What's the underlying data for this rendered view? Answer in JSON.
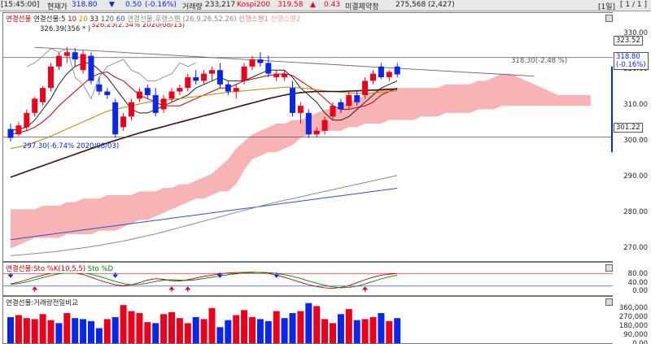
{
  "header": {
    "time": "[15:45:00]",
    "price_label": "현재가",
    "price": "318.80",
    "change_arrow": "▼",
    "change": "0.50",
    "change_pct": "(-0.16%)",
    "volume_label": "거래량",
    "volume": "233,217",
    "kospi_label": "Kospi200",
    "kospi_value": "319.58",
    "kospi_arrow": "▲",
    "kospi_change": "0.43",
    "oi_label": "미결제약정",
    "oi_value": "275,568",
    "oi_change": "(2,427)",
    "period": "[1일]",
    "page": "[ 1 / 1 ]",
    "colors": {
      "up": "#e8001c",
      "down": "#0a26e6"
    }
  },
  "main_legend": [
    {
      "text": "연결선물",
      "color": "#c00000"
    },
    {
      "text": "연결선물:5",
      "color": "#222222"
    },
    {
      "text": "10",
      "color": "#c00000"
    },
    {
      "text": "20",
      "color": "#b8860b"
    },
    {
      "text": "33",
      "color": "#3a1010"
    },
    {
      "text": "120",
      "color": "#555555"
    },
    {
      "text": "60",
      "color": "#3050d0"
    },
    {
      "text": "연결선물:후행스팬",
      "color": "#888888"
    },
    {
      "text": "(26,9,26,52,26)",
      "color": "#888888"
    },
    {
      "text": "선행스팬1",
      "color": "#e88080"
    },
    {
      "text": "선행스팬2",
      "color": "#e8a0a0"
    }
  ],
  "stoch_legend": [
    {
      "text": "연결선물:Sto %K(10,5,5)",
      "color": "#c00000"
    },
    {
      "text": "Sto %D",
      "color": "#008000"
    }
  ],
  "vol_legend": [
    {
      "text": "연결선물:거래량전일비교",
      "color": "#222222"
    }
  ],
  "annotations": {
    "peak_main": "326.39(356 * )",
    "peak_high": "326.25(2.34% 2020/08/13)",
    "low_mark": "297.30(-6.74% 2020/08/03)",
    "trend_end": "318.30(-2.48 %)"
  },
  "price_boxes": {
    "resistance": "323.52",
    "current_price": "318.80",
    "current_pct": "(-0.16%)",
    "support": "301.22"
  },
  "chart_data": [
    {
      "type": "candlestick",
      "name": "연결선물",
      "y_ticks": [
        "330.00",
        "320.00",
        "310.00",
        "300.00",
        "290.00",
        "280.00",
        "270.00"
      ],
      "ylim": [
        266.5,
        336
      ],
      "candles": [
        {
          "o": 303.5,
          "h": 305,
          "c": 301,
          "l": 300
        },
        {
          "o": 302,
          "h": 305.5,
          "c": 304.5,
          "l": 301.5
        },
        {
          "o": 304,
          "h": 309,
          "c": 308,
          "l": 303
        },
        {
          "o": 308,
          "h": 312.5,
          "c": 312,
          "l": 307
        },
        {
          "o": 311,
          "h": 315.5,
          "c": 315,
          "l": 310
        },
        {
          "o": 315,
          "h": 322,
          "c": 321,
          "l": 314
        },
        {
          "o": 321,
          "h": 325,
          "c": 324,
          "l": 320
        },
        {
          "o": 324,
          "h": 326.4,
          "c": 325,
          "l": 322
        },
        {
          "o": 325,
          "h": 326.2,
          "c": 323,
          "l": 321
        },
        {
          "o": 320,
          "h": 325.5,
          "c": 324.5,
          "l": 319
        },
        {
          "o": 324,
          "h": 325,
          "c": 317,
          "l": 316
        },
        {
          "o": 316,
          "h": 318,
          "c": 314,
          "l": 313
        },
        {
          "o": 314,
          "h": 315,
          "c": 313,
          "l": 312
        },
        {
          "o": 311,
          "h": 312,
          "c": 302,
          "l": 301
        },
        {
          "o": 304,
          "h": 308,
          "c": 307,
          "l": 303
        },
        {
          "o": 307,
          "h": 312,
          "c": 311,
          "l": 306
        },
        {
          "o": 312,
          "h": 315,
          "c": 314,
          "l": 311
        },
        {
          "o": 315,
          "h": 316,
          "c": 313,
          "l": 312
        },
        {
          "o": 313,
          "h": 315,
          "c": 308,
          "l": 307
        },
        {
          "o": 309,
          "h": 313,
          "c": 312,
          "l": 308
        },
        {
          "o": 312,
          "h": 315,
          "c": 314,
          "l": 311
        },
        {
          "o": 314,
          "h": 316,
          "c": 315,
          "l": 313
        },
        {
          "o": 315,
          "h": 319,
          "c": 318,
          "l": 314
        },
        {
          "o": 318,
          "h": 320,
          "c": 317,
          "l": 316
        },
        {
          "o": 317,
          "h": 320,
          "c": 319,
          "l": 316
        },
        {
          "o": 319,
          "h": 321,
          "c": 320,
          "l": 317
        },
        {
          "o": 320,
          "h": 322,
          "c": 316,
          "l": 315
        },
        {
          "o": 316,
          "h": 317,
          "c": 314,
          "l": 313
        },
        {
          "o": 314,
          "h": 316,
          "c": 315,
          "l": 312
        },
        {
          "o": 317,
          "h": 322,
          "c": 321,
          "l": 316
        },
        {
          "o": 321,
          "h": 324,
          "c": 323,
          "l": 320
        },
        {
          "o": 323,
          "h": 325,
          "c": 322,
          "l": 321
        },
        {
          "o": 322,
          "h": 324,
          "c": 319,
          "l": 318
        },
        {
          "o": 318,
          "h": 320,
          "c": 319,
          "l": 317
        },
        {
          "o": 318,
          "h": 320,
          "c": 319,
          "l": 317
        },
        {
          "o": 315,
          "h": 317,
          "c": 308,
          "l": 307
        },
        {
          "o": 308,
          "h": 311,
          "c": 310,
          "l": 305
        },
        {
          "o": 308,
          "h": 309,
          "c": 302,
          "l": 301
        },
        {
          "o": 302,
          "h": 304,
          "c": 303,
          "l": 301.2
        },
        {
          "o": 303,
          "h": 307,
          "c": 306,
          "l": 302
        },
        {
          "o": 307,
          "h": 311,
          "c": 310,
          "l": 306
        },
        {
          "o": 311,
          "h": 312,
          "c": 309,
          "l": 308
        },
        {
          "o": 310,
          "h": 314,
          "c": 313,
          "l": 309
        },
        {
          "o": 313,
          "h": 314,
          "c": 311,
          "l": 310
        },
        {
          "o": 313,
          "h": 318,
          "c": 317,
          "l": 312
        },
        {
          "o": 317,
          "h": 320,
          "c": 319,
          "l": 316
        },
        {
          "o": 321,
          "h": 322,
          "c": 318,
          "l": 317.5
        },
        {
          "o": 318,
          "h": 320,
          "c": 319.5,
          "l": 317
        },
        {
          "o": 321,
          "h": 322,
          "c": 318.8,
          "l": 318
        }
      ],
      "ma": [
        {
          "name": "5",
          "color": "#222222",
          "values": [
            303,
            303.5,
            304,
            306,
            309,
            312,
            316,
            319,
            321,
            322,
            322,
            320,
            318,
            315,
            312,
            309,
            308,
            308,
            309,
            310,
            311,
            312,
            313,
            315,
            316,
            317,
            318,
            317,
            317,
            317,
            318,
            319,
            320,
            320,
            320,
            318,
            315,
            313,
            311,
            308,
            306,
            306,
            307,
            309,
            311,
            313,
            315,
            316,
            317
          ]
        },
        {
          "name": "10",
          "color": "#c00000",
          "values": [
            302,
            302.5,
            303,
            304,
            305.5,
            307.5,
            310,
            312,
            314,
            316,
            318,
            319,
            319.5,
            318,
            317,
            315,
            313,
            312,
            311,
            310,
            310,
            310,
            311,
            312,
            313,
            314,
            315,
            315,
            316,
            317,
            317.5,
            318,
            318.5,
            318.8,
            319,
            318.5,
            317,
            315.5,
            314,
            312,
            310,
            309,
            309,
            309.5,
            310,
            311,
            313,
            314,
            315
          ]
        },
        {
          "name": "20",
          "color": "#b8860b",
          "values": [
            298,
            298.5,
            299,
            299.8,
            300.6,
            301.5,
            302.5,
            303.5,
            304.5,
            305.5,
            306.5,
            307.5,
            308.5,
            309,
            309.5,
            310,
            310.5,
            311,
            311.3,
            311.5,
            311.8,
            312,
            312.3,
            312.6,
            312.9,
            313.2,
            313.5,
            313.8,
            314,
            314.2,
            314.4,
            314.6,
            314.8,
            315,
            315.2,
            315.2,
            315,
            314.8,
            314.5,
            314.2,
            314,
            313.8,
            313.6,
            313.5,
            313.5,
            313.6,
            313.8,
            314,
            314.2
          ]
        },
        {
          "name": "33",
          "color": "#3a1010",
          "values": [
            290,
            290.8,
            291.6,
            292.4,
            293.2,
            294,
            294.8,
            295.6,
            296.4,
            297.2,
            298,
            298.8,
            299.6,
            300.3,
            301,
            301.7,
            302.4,
            303,
            303.6,
            304.2,
            304.8,
            305.4,
            306,
            306.6,
            307.2,
            307.8,
            308.4,
            309,
            309.6,
            310.2,
            310.8,
            311.4,
            312,
            312.5,
            313,
            313.4,
            313.7,
            313.9,
            314,
            314,
            314,
            314,
            314.1,
            314.2,
            314.3,
            314.4,
            314.5,
            314.6,
            314.7
          ]
        },
        {
          "name": "60",
          "color": "#3050d0",
          "values": [
            272.5,
            272.8,
            273.1,
            273.4,
            273.7,
            274,
            274.3,
            274.6,
            274.9,
            275.2,
            275.5,
            275.8,
            276.1,
            276.4,
            276.7,
            277,
            277.3,
            277.6,
            277.9,
            278.2,
            278.5,
            278.8,
            279.1,
            279.4,
            279.7,
            280,
            280.3,
            280.6,
            280.9,
            281.2,
            281.5,
            281.8,
            282.1,
            282.4,
            282.7,
            283,
            283.3,
            283.6,
            283.9,
            284.2,
            284.5,
            284.8,
            285.1,
            285.4,
            285.7,
            286,
            286.3,
            286.6,
            286.9
          ]
        },
        {
          "name": "120",
          "color": "#8a8a8a",
          "values": [
            268,
            268.2,
            268.4,
            268.6,
            268.8,
            269,
            269.3,
            269.6,
            269.9,
            270.2,
            270.5,
            270.9,
            271.3,
            271.7,
            272.1,
            272.6,
            273.1,
            273.6,
            274.1,
            274.7,
            275.3,
            275.9,
            276.5,
            277.1,
            277.7,
            278.3,
            278.9,
            279.5,
            280.1,
            280.7,
            281.3,
            281.9,
            282.5,
            283,
            283.5,
            284,
            284.5,
            285,
            285.5,
            286,
            286.5,
            287,
            287.5,
            288,
            288.5,
            289,
            289.5,
            290,
            290.5
          ]
        }
      ],
      "lagging_span": [
        321,
        322,
        324,
        326,
        325,
        326,
        318,
        316,
        312,
        318,
        321,
        322,
        323,
        320,
        319,
        317,
        317,
        318,
        319,
        322,
        321,
        322
      ]
    },
    {
      "type": "area",
      "name": "ichimoku_cloud",
      "span_upper": [
        281,
        281,
        281,
        281,
        282,
        282,
        282,
        283,
        283,
        284,
        284,
        284,
        285,
        285,
        285,
        285,
        286,
        286,
        286,
        287,
        287,
        288,
        288,
        289,
        290,
        291,
        293,
        295,
        298,
        300,
        302,
        303,
        304,
        305,
        305,
        306,
        306,
        307,
        308,
        309,
        309,
        310,
        311,
        312,
        313,
        314,
        315,
        315,
        315,
        315,
        315,
        315,
        315,
        315,
        316,
        316,
        316,
        316,
        317,
        317,
        318,
        319,
        319,
        318,
        317,
        316,
        315,
        314,
        313,
        313,
        313,
        313,
        313
      ],
      "span_lower": [
        270,
        271,
        272,
        273,
        273,
        273,
        273,
        274,
        274,
        274,
        274,
        275,
        275,
        275,
        276,
        277,
        278,
        278,
        279,
        280,
        281,
        282,
        283,
        284,
        284,
        285,
        286,
        286,
        288,
        292,
        295,
        296,
        297,
        297,
        298,
        299,
        301,
        302,
        302,
        303,
        303,
        303,
        304,
        304,
        305,
        305,
        305,
        306,
        306,
        306,
        306,
        307,
        307,
        307,
        308,
        308,
        308,
        308,
        309,
        309,
        309,
        310,
        310,
        310,
        310,
        310,
        310,
        310,
        310,
        310,
        310,
        310,
        310
      ]
    },
    {
      "type": "line",
      "name": "trendline",
      "points": [
        [
          3,
          326.39
        ],
        [
          65,
          318.3
        ]
      ]
    },
    {
      "type": "line",
      "name": "연결선물:Sto %K(10,5,5)",
      "y_ticks": [
        "80.00",
        "40.00",
        "0.00"
      ],
      "ylim": [
        0,
        100
      ],
      "series": [
        {
          "name": "Sto %K",
          "color": "#c00000",
          "values": [
            30,
            38,
            50,
            62,
            72,
            80,
            85,
            85,
            82,
            75,
            62,
            48,
            36,
            26,
            22,
            26,
            36,
            48,
            55,
            52,
            45,
            44,
            50,
            58,
            66,
            72,
            78,
            82,
            84,
            85,
            86,
            84,
            80,
            72,
            62,
            50,
            38,
            26,
            18,
            12,
            10,
            14,
            22,
            36,
            50,
            62,
            72,
            76,
            80
          ]
        },
        {
          "name": "Sto %D",
          "color": "#008000",
          "values": [
            28,
            32,
            40,
            50,
            60,
            70,
            78,
            82,
            84,
            82,
            76,
            66,
            54,
            42,
            32,
            26,
            28,
            34,
            42,
            48,
            50,
            48,
            47,
            50,
            56,
            62,
            68,
            74,
            78,
            82,
            84,
            85,
            84,
            80,
            74,
            66,
            56,
            44,
            34,
            24,
            16,
            12,
            14,
            20,
            30,
            42,
            54,
            64,
            72
          ]
        }
      ]
    },
    {
      "type": "bar",
      "name": "연결선물:거래량전일비교",
      "y_ticks": [
        "360,000",
        "270,000",
        "180,000",
        "90,000",
        "0.00"
      ],
      "ylim": [
        0,
        430000
      ],
      "values": [
        260000,
        280000,
        250000,
        240000,
        290000,
        230000,
        200000,
        300000,
        250000,
        240000,
        220000,
        150000,
        240000,
        260000,
        380000,
        320000,
        300000,
        210000,
        200000,
        290000,
        310000,
        250000,
        200000,
        260000,
        240000,
        350000,
        160000,
        230000,
        280000,
        330000,
        260000,
        240000,
        220000,
        320000,
        250000,
        300000,
        320000,
        400000,
        370000,
        240000,
        200000,
        290000,
        340000,
        230000,
        240000,
        260000,
        300000,
        220000,
        250000
      ],
      "colors_up_down": [
        "d",
        "u",
        "u",
        "u",
        "u",
        "u",
        "d",
        "u",
        "d",
        "d",
        "d",
        "d",
        "u",
        "d",
        "u",
        "u",
        "u",
        "u",
        "d",
        "u",
        "u",
        "u",
        "u",
        "d",
        "u",
        "u",
        "d",
        "d",
        "u",
        "u",
        "u",
        "d",
        "d",
        "u",
        "d",
        "d",
        "u",
        "d",
        "u",
        "u",
        "u",
        "d",
        "u",
        "d",
        "u",
        "u",
        "d",
        "u",
        "d"
      ]
    }
  ],
  "stoch_signals": {
    "up": [
      3,
      20,
      22,
      44
    ],
    "down": [
      0,
      13,
      26,
      33
    ]
  }
}
